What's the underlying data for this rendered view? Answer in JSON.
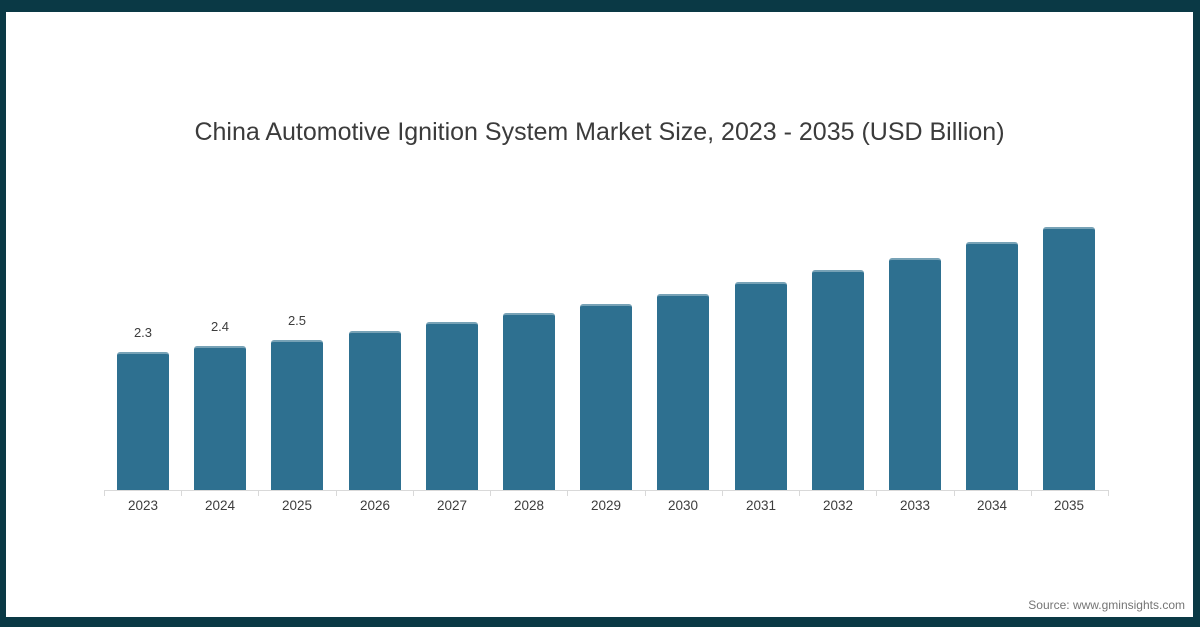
{
  "frame": {
    "border_color": "#0a3945",
    "background": "#ffffff"
  },
  "source": {
    "text": "Source: www.gminsights.com"
  },
  "chart_data": {
    "type": "bar",
    "title": "China Automotive Ignition System Market Size, 2023 - 2035 (USD Billion)",
    "xlabel": "",
    "ylabel": "",
    "categories": [
      "2023",
      "2024",
      "2025",
      "2026",
      "2027",
      "2028",
      "2029",
      "2030",
      "2031",
      "2032",
      "2033",
      "2034",
      "2035"
    ],
    "values": [
      2.3,
      2.4,
      2.5,
      2.65,
      2.8,
      2.95,
      3.1,
      3.27,
      3.47,
      3.67,
      3.87,
      4.13,
      4.38
    ],
    "data_labels": [
      "2.3",
      "2.4",
      "2.5",
      "",
      "",
      "",
      "",
      "",
      "",
      "",
      "",
      "",
      ""
    ],
    "unit": "USD Billion",
    "ylim": [
      0,
      4.8
    ],
    "grid": false,
    "legend": false,
    "bar_color": "#2E7090",
    "axis_color": "#d9d9d9",
    "label_color": "#3d3d3d",
    "title_color": "#3b3b3b",
    "source_color": "#757575"
  }
}
